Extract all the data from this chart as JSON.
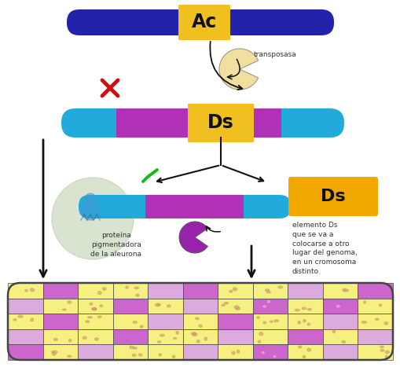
{
  "bg_color": "#ffffff",
  "ac_bar_color": "#2222aa",
  "ac_label_bg": "#f0c020",
  "ac_label": "Ac",
  "ds_bar_color": "#22aadd",
  "ds_label_bg": "#f0c020",
  "ds_label": "Ds",
  "ds_purple_color": "#b030b8",
  "transposasa_color": "#f0e0a0",
  "transposasa_label": "transposasa",
  "check_color": "#11bb11",
  "cross_color": "#cc1111",
  "protein_circle_color": "#b8ccaa",
  "protein_label": "proteína\npigmentadora\nde la aleurona",
  "ds_box_color": "#f0a800",
  "ds_element_label": "elemento Ds\nque se va a\ncolocarse a otro\nlugar del genoma,\nen un cromosoma\ndistinto",
  "grid_yellow": "#f5f080",
  "grid_yellow2": "#fffff0",
  "grid_purple": "#cc66cc",
  "grid_light_purple": "#ddaadd",
  "grid_outline": "#444444",
  "arrow_color": "#111111",
  "colors_pattern": [
    [
      "y",
      "p",
      "y",
      "y",
      "lp",
      "p",
      "y",
      "y",
      "lp",
      "y",
      "p"
    ],
    [
      "lp",
      "y",
      "y",
      "p",
      "y",
      "lp",
      "y",
      "p",
      "y",
      "p",
      "y"
    ],
    [
      "y",
      "p",
      "y",
      "y",
      "lp",
      "y",
      "p",
      "y",
      "y",
      "lp",
      "y"
    ],
    [
      "lp",
      "y",
      "y",
      "p",
      "y",
      "y",
      "lp",
      "y",
      "p",
      "y",
      "lp"
    ],
    [
      "p",
      "y",
      "lp",
      "y",
      "y",
      "lp",
      "y",
      "p",
      "y",
      "lp",
      "y"
    ]
  ]
}
